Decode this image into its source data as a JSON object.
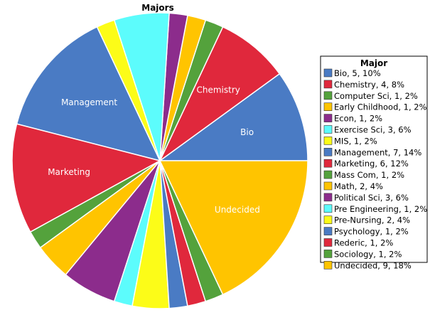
{
  "chart_data": {
    "type": "pie",
    "title": "Majors",
    "legend_title": "Major",
    "legend_position": "right",
    "slices": [
      {
        "label": "Bio",
        "value": 5,
        "percent": 10,
        "color": "#4a7bc4",
        "legend": "Bio, 5, 10%",
        "show_label": true
      },
      {
        "label": "Chemistry",
        "value": 4,
        "percent": 8,
        "color": "#e0283c",
        "legend": "Chemistry, 4, 8%",
        "show_label": true
      },
      {
        "label": "Computer Sci",
        "value": 1,
        "percent": 2,
        "color": "#54a23c",
        "legend": "Computer Sci, 1, 2%",
        "show_label": false
      },
      {
        "label": "Early Childhood",
        "value": 1,
        "percent": 2,
        "color": "#ffc400",
        "legend": "Early Childhood, 1, 2%",
        "show_label": false
      },
      {
        "label": "Econ",
        "value": 1,
        "percent": 2,
        "color": "#8c2c8c",
        "legend": "Econ, 1, 2%",
        "show_label": false
      },
      {
        "label": "Exercise Sci",
        "value": 3,
        "percent": 6,
        "color": "#5cfcfc",
        "legend": "Exercise Sci, 3, 6%",
        "show_label": false
      },
      {
        "label": "MIS",
        "value": 1,
        "percent": 2,
        "color": "#fcfc18",
        "legend": "MIS, 1, 2%",
        "show_label": false
      },
      {
        "label": "Management",
        "value": 7,
        "percent": 14,
        "color": "#4a7bc4",
        "legend": "Management, 7, 14%",
        "show_label": true
      },
      {
        "label": "Marketing",
        "value": 6,
        "percent": 12,
        "color": "#e0283c",
        "legend": "Marketing, 6, 12%",
        "show_label": true
      },
      {
        "label": "Mass Com",
        "value": 1,
        "percent": 2,
        "color": "#54a23c",
        "legend": "Mass Com, 1, 2%",
        "show_label": false
      },
      {
        "label": "Math",
        "value": 2,
        "percent": 4,
        "color": "#ffc400",
        "legend": "Math, 2, 4%",
        "show_label": false
      },
      {
        "label": "Political Sci",
        "value": 3,
        "percent": 6,
        "color": "#8c2c8c",
        "legend": "Political Sci, 3, 6%",
        "show_label": false
      },
      {
        "label": "Pre Engineering",
        "value": 1,
        "percent": 2,
        "color": "#5cfcfc",
        "legend": "Pre Engineering, 1, 2%",
        "show_label": false
      },
      {
        "label": "Pre-Nursing",
        "value": 2,
        "percent": 4,
        "color": "#fcfc18",
        "legend": "Pre-Nursing, 2, 4%",
        "show_label": false
      },
      {
        "label": "Psychology",
        "value": 1,
        "percent": 2,
        "color": "#4a7bc4",
        "legend": "Psychology, 1, 2%",
        "show_label": false
      },
      {
        "label": "Rederic",
        "value": 1,
        "percent": 2,
        "color": "#e0283c",
        "legend": "Rederic, 1, 2%",
        "show_label": false
      },
      {
        "label": "Sociology",
        "value": 1,
        "percent": 2,
        "color": "#54a23c",
        "legend": "Sociology, 1, 2%",
        "show_label": false
      },
      {
        "label": "Undecided",
        "value": 9,
        "percent": 18,
        "color": "#ffc400",
        "legend": "Undecided, 9, 18%",
        "show_label": true
      }
    ]
  }
}
